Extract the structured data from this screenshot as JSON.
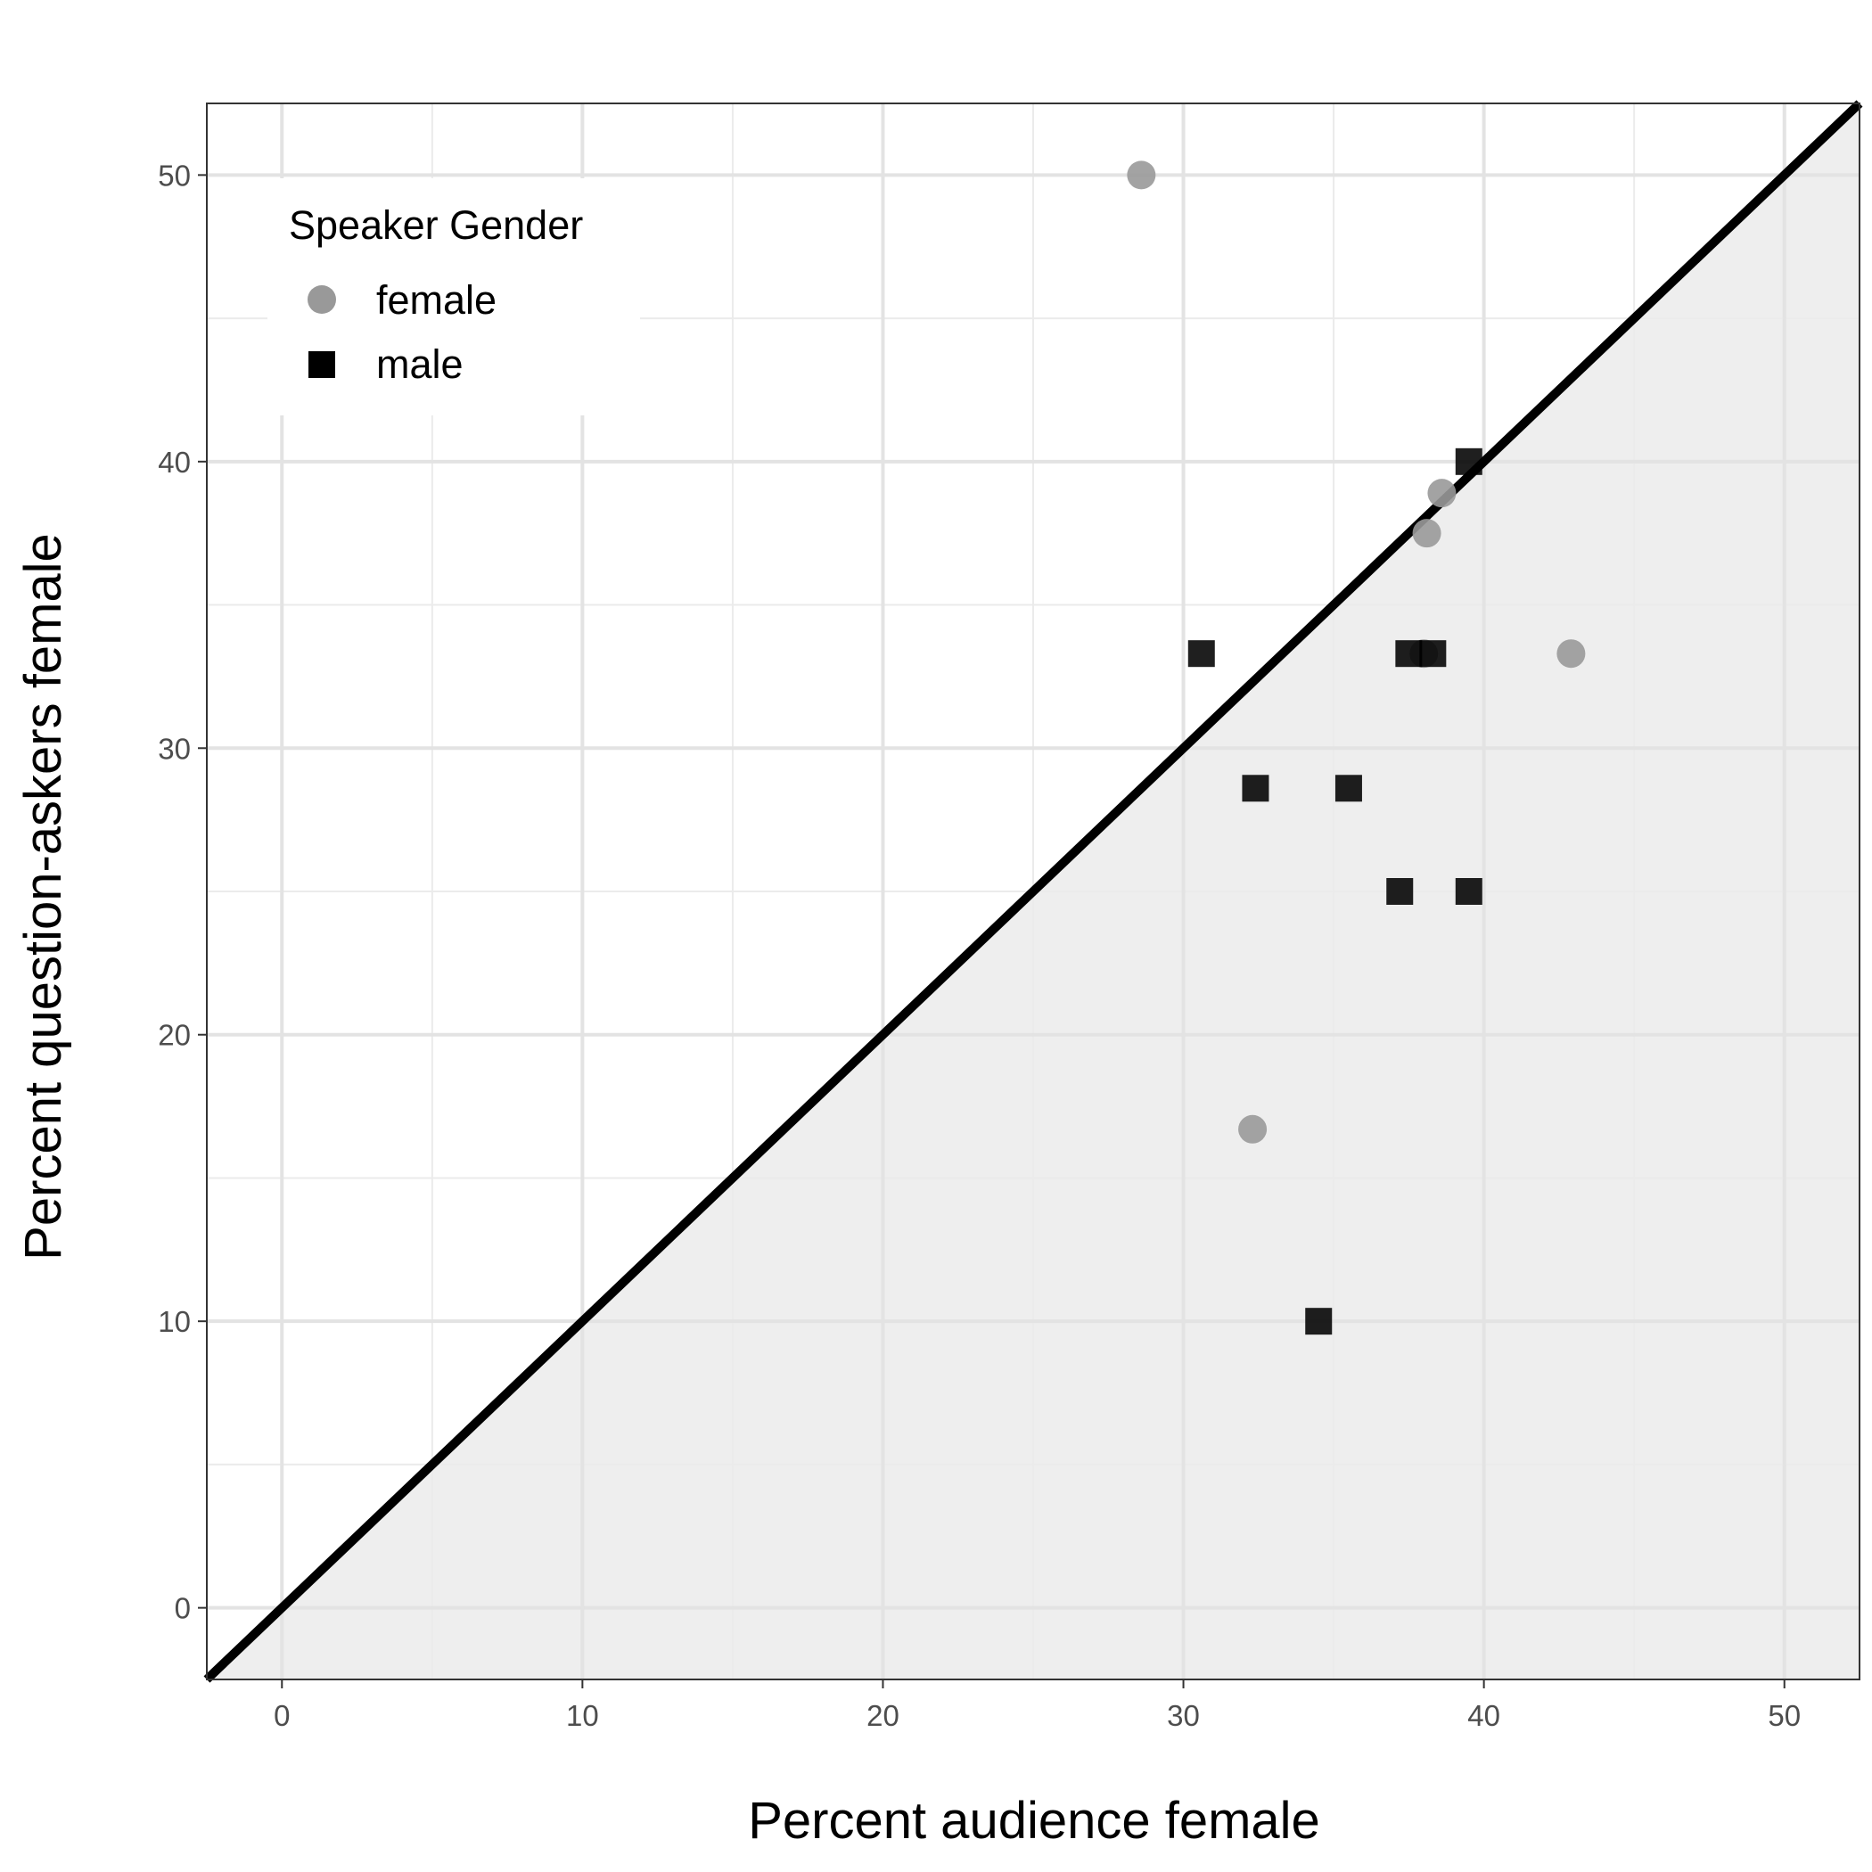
{
  "chart_data": {
    "type": "scatter",
    "title": "",
    "xlabel": "Percent audience female",
    "ylabel": "Percent question-askers female",
    "xlim": [
      -2.5,
      52.5
    ],
    "ylim": [
      -2.5,
      52.5
    ],
    "x_ticks": [
      "0",
      "10",
      "20",
      "30",
      "40",
      "50"
    ],
    "y_ticks": [
      "0",
      "10",
      "20",
      "30",
      "40",
      "50"
    ],
    "grid": true,
    "reference_line": {
      "type": "identity",
      "slope": 1,
      "intercept": 0,
      "color": "#000000"
    },
    "shaded_region": "below identity line",
    "legend": {
      "title": "Speaker Gender",
      "position": "top-left",
      "entries": [
        {
          "label": "female",
          "shape": "circle",
          "color": "#999999"
        },
        {
          "label": "male",
          "shape": "square",
          "color": "#000000"
        }
      ]
    },
    "series": [
      {
        "name": "female",
        "shape": "circle",
        "color": "#999999",
        "points": [
          {
            "x": 28.6,
            "y": 50.0
          },
          {
            "x": 38.6,
            "y": 38.9
          },
          {
            "x": 38.1,
            "y": 37.5
          },
          {
            "x": 42.9,
            "y": 33.3
          },
          {
            "x": 38.0,
            "y": 33.3
          },
          {
            "x": 32.3,
            "y": 16.7
          }
        ]
      },
      {
        "name": "male",
        "shape": "square",
        "color": "#000000",
        "points": [
          {
            "x": 39.5,
            "y": 40.0
          },
          {
            "x": 30.6,
            "y": 33.3
          },
          {
            "x": 37.5,
            "y": 33.3
          },
          {
            "x": 38.3,
            "y": 33.3
          },
          {
            "x": 32.4,
            "y": 28.6
          },
          {
            "x": 35.5,
            "y": 28.6
          },
          {
            "x": 37.2,
            "y": 25.0
          },
          {
            "x": 39.5,
            "y": 25.0
          },
          {
            "x": 34.5,
            "y": 10.0
          }
        ]
      }
    ]
  }
}
